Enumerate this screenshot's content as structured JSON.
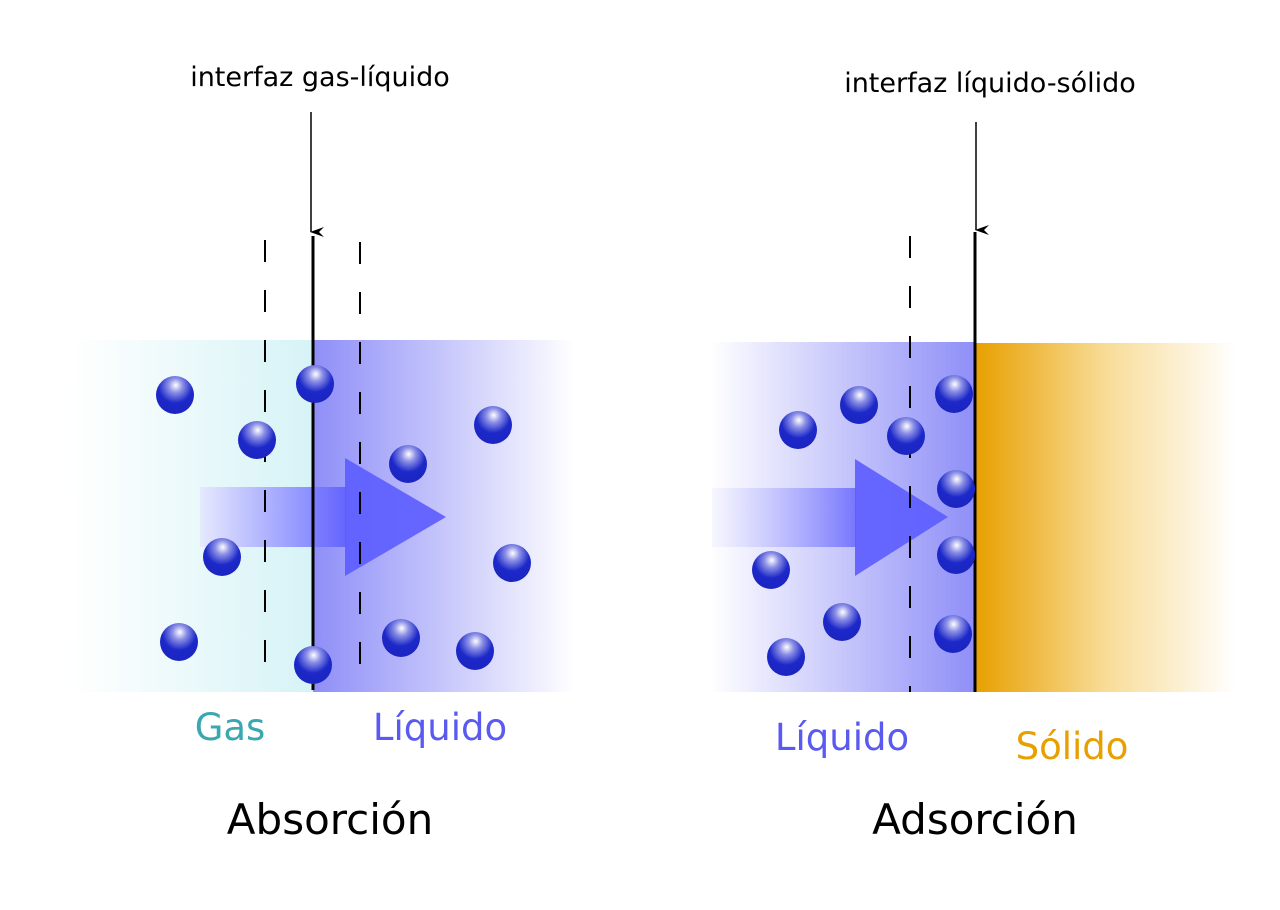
{
  "absorption": {
    "interface_label": "interfaz gas-líquido",
    "phase_left": "Gas",
    "phase_right": "Líquido",
    "title": "Absorción"
  },
  "adsorption": {
    "interface_label": "interfaz líquido-sólido",
    "phase_left": "Líquido",
    "phase_right": "Sólido",
    "title": "Adsorción"
  },
  "colors": {
    "gas": "#3aa8b0",
    "liquid": "#5a5af0",
    "solid": "#e8a000",
    "molecule": "#1c28c8"
  }
}
